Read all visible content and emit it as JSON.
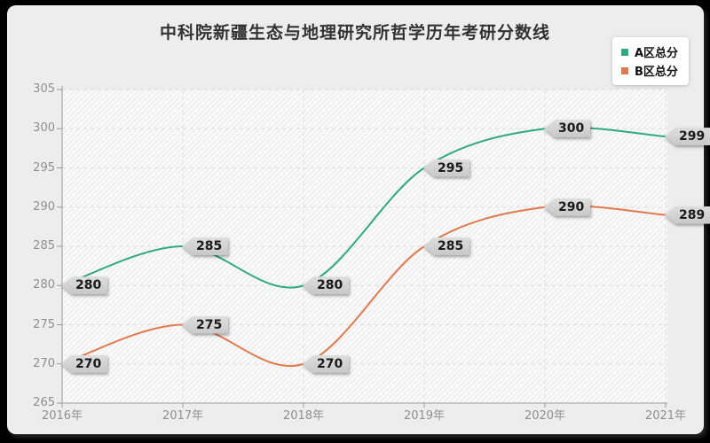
{
  "title": "中科院新疆生态与地理研究所哲学历年考研分数线",
  "colors": {
    "frame": "#000000",
    "panel": "#ededed",
    "axis": "#999999",
    "grid": "#dcdcdc",
    "tick_label": "#8f8f8f",
    "title_text": "#333333",
    "badge_bg": "#d4d4d4",
    "legend_bg": "#ffffff"
  },
  "chart_data": {
    "type": "line",
    "smooth": true,
    "grid": true,
    "legend_position": "top-right",
    "categories": [
      "2016年",
      "2017年",
      "2018年",
      "2019年",
      "2020年",
      "2021年"
    ],
    "series": [
      {
        "name": "A区总分",
        "color": "#2fa883",
        "values": [
          280,
          285,
          280,
          295,
          300,
          299
        ]
      },
      {
        "name": "B区总分",
        "color": "#e0794f",
        "values": [
          270,
          275,
          270,
          285,
          290,
          289
        ]
      }
    ],
    "y_ticks": [
      265,
      270,
      275,
      280,
      285,
      290,
      295,
      300,
      305
    ],
    "ylim": [
      265,
      305
    ],
    "xlabel": "",
    "ylabel": "",
    "point_labels_visible": true
  }
}
